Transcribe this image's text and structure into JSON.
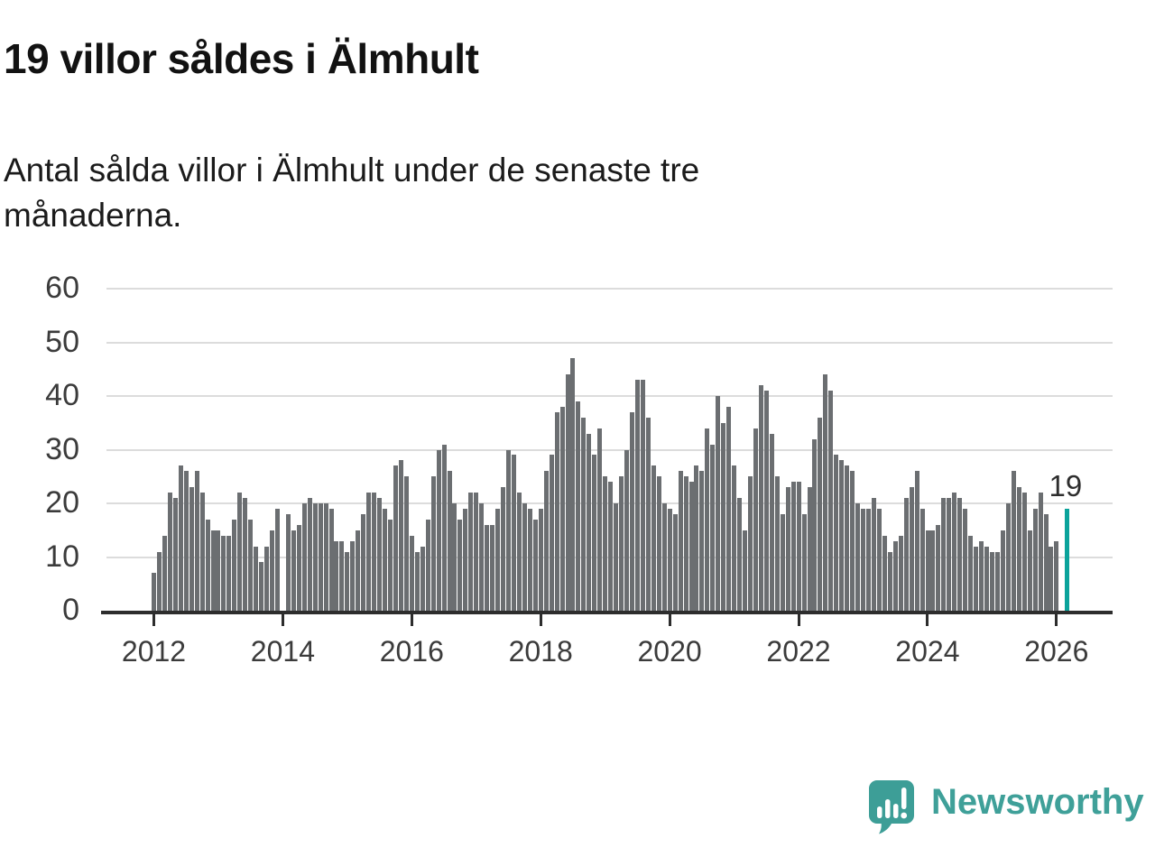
{
  "header": {
    "title": "19 villor såldes i Älmhult",
    "subtitle_line1": "Antal sålda villor i Älmhult under de senaste tre",
    "subtitle_line2": "månaderna."
  },
  "chart_data": {
    "type": "bar",
    "title": "Antal sålda villor i Älmhult under de senaste tre månaderna",
    "x_start": "2012-01",
    "frequency": "monthly",
    "x_tick_labels": [
      "2012",
      "2014",
      "2016",
      "2018",
      "2020",
      "2022",
      "2024",
      "2026"
    ],
    "y_ticks": [
      0,
      10,
      20,
      30,
      40,
      50,
      60
    ],
    "ylim": [
      0,
      60
    ],
    "grid": true,
    "bar_color": "#6b6e71",
    "highlight_color": "#0ba39b",
    "highlight_index": 170,
    "highlight_label": "19",
    "values": [
      7,
      11,
      14,
      22,
      21,
      27,
      26,
      23,
      26,
      22,
      17,
      15,
      15,
      14,
      14,
      17,
      22,
      21,
      17,
      12,
      9,
      12,
      15,
      19,
      null,
      18,
      15,
      16,
      20,
      21,
      20,
      20,
      20,
      19,
      13,
      13,
      11,
      13,
      15,
      18,
      22,
      22,
      21,
      19,
      17,
      27,
      28,
      25,
      14,
      11,
      12,
      17,
      25,
      30,
      31,
      26,
      20,
      17,
      19,
      22,
      22,
      20,
      16,
      16,
      19,
      23,
      30,
      29,
      22,
      20,
      19,
      17,
      19,
      26,
      29,
      37,
      38,
      44,
      47,
      39,
      36,
      33,
      29,
      34,
      25,
      24,
      20,
      25,
      30,
      37,
      43,
      43,
      36,
      27,
      25,
      20,
      19,
      18,
      26,
      25,
      24,
      27,
      26,
      34,
      31,
      40,
      35,
      38,
      27,
      21,
      15,
      25,
      34,
      42,
      41,
      33,
      25,
      18,
      23,
      24,
      24,
      18,
      23,
      32,
      36,
      44,
      41,
      29,
      28,
      27,
      26,
      20,
      19,
      19,
      21,
      19,
      14,
      11,
      13,
      14,
      21,
      23,
      26,
      19,
      15,
      15,
      16,
      21,
      21,
      22,
      21,
      19,
      14,
      12,
      13,
      12,
      11,
      11,
      15,
      20,
      26,
      23,
      22,
      15,
      19,
      22,
      18,
      12,
      13,
      null,
      19
    ]
  },
  "footer": {
    "brand": "Newsworthy",
    "logo_color": "#3d9e97"
  }
}
